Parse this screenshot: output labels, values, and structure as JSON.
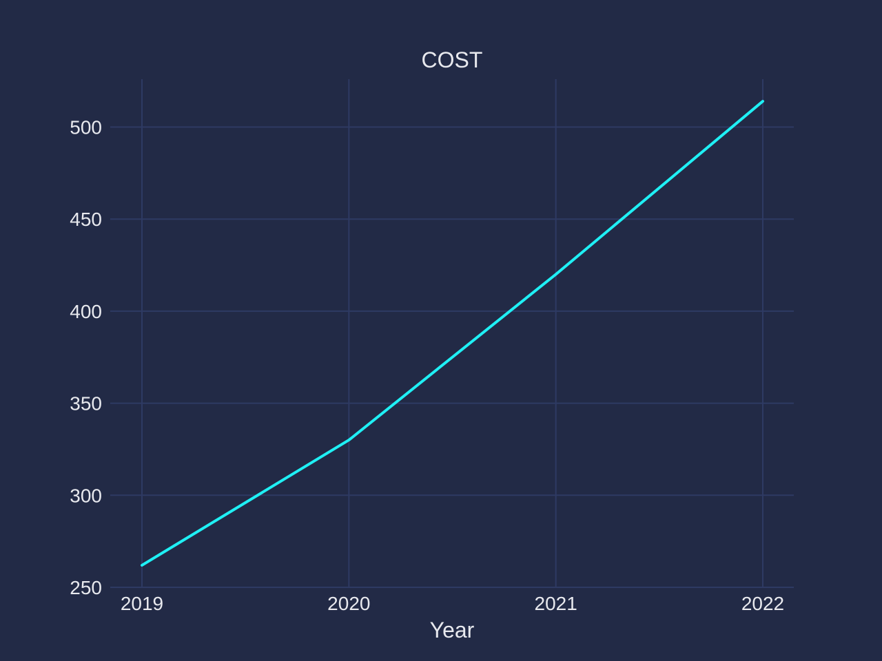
{
  "chart_data": {
    "type": "line",
    "title": "COST",
    "xlabel": "Year",
    "ylabel": "",
    "x": [
      "2019",
      "2020",
      "2021",
      "2022"
    ],
    "series": [
      {
        "values": [
          262,
          330,
          420,
          514
        ],
        "color": "#1ff0f5"
      }
    ],
    "ylim": [
      250,
      526
    ],
    "yticks": [
      250,
      300,
      350,
      400,
      450,
      500
    ],
    "grid": true,
    "legend": "none"
  },
  "colors": {
    "background": "#222a46",
    "grid": "#2e3a63",
    "text": "#e8e9ee"
  }
}
